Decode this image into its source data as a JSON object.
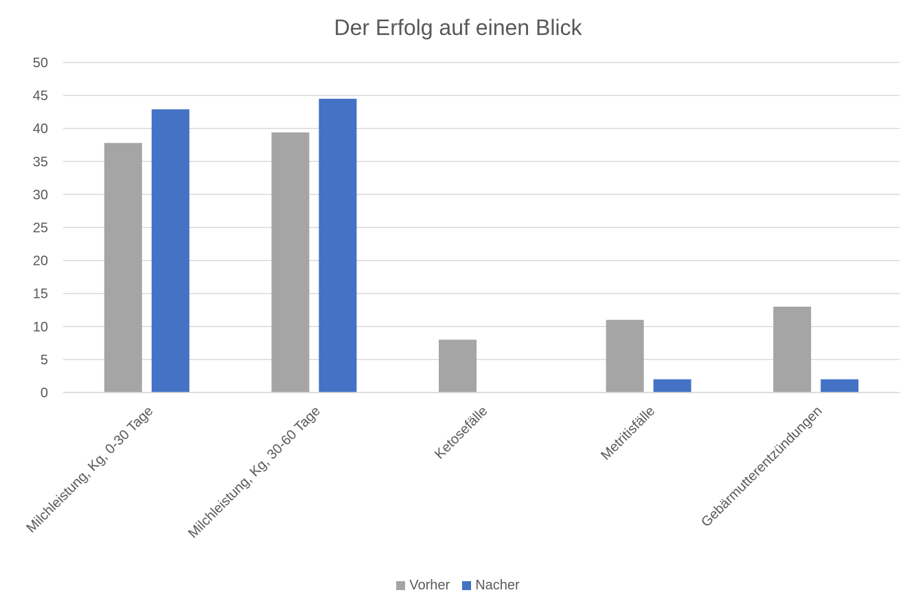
{
  "chart_data": {
    "type": "bar",
    "title": "Der Erfolg auf einen Blick",
    "xlabel": "",
    "ylabel": "",
    "categories": [
      "Milchleistung, Kg, 0-30 Tage",
      "Milchleistung, Kg, 30-60 Tage",
      "Ketosefälle",
      "Metritisfälle",
      "Gebärmutterentzündungen"
    ],
    "series": [
      {
        "name": "Vorher",
        "color": "#a5a5a5",
        "values": [
          37.8,
          39.4,
          8,
          11,
          13
        ]
      },
      {
        "name": "Nacher",
        "color": "#4472c4",
        "values": [
          42.9,
          44.5,
          0,
          2,
          2
        ]
      }
    ],
    "ylim": [
      0,
      50
    ],
    "yticks": [
      "0",
      "5",
      "10",
      "15",
      "20",
      "25",
      "30",
      "35",
      "40",
      "45",
      "50"
    ],
    "grid": true,
    "legend_position": "bottom"
  }
}
